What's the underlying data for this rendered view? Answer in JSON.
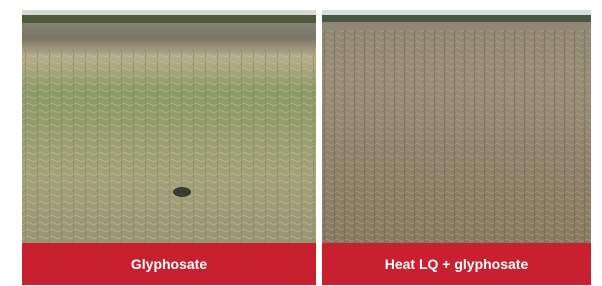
{
  "panels": [
    {
      "caption": "Glyphosate"
    },
    {
      "caption": "Heat LQ + glyphosate"
    }
  ]
}
